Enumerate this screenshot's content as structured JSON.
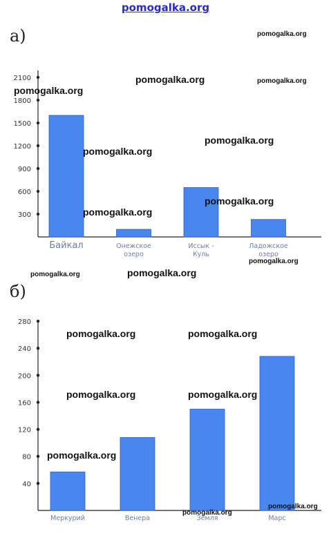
{
  "header": {
    "site": "pomogalka.org"
  },
  "watermark": "pomogalka.org",
  "chart_data": [
    {
      "label": "а)",
      "type": "bar",
      "categories": [
        [
          "Байкал"
        ],
        [
          "Онежское",
          "озеро"
        ],
        [
          "Иссык -",
          "Куль"
        ],
        [
          "Ладожское",
          "озеро"
        ]
      ],
      "values": [
        1600,
        100,
        650,
        230
      ],
      "y_ticks": [
        300,
        600,
        900,
        1200,
        1500,
        1800,
        2100
      ],
      "ylim": [
        0,
        2100
      ],
      "bar_color": "#4a86f0",
      "grid": false
    },
    {
      "label": "б)",
      "type": "bar",
      "categories": [
        [
          "Меркурий"
        ],
        [
          "Венера"
        ],
        [
          "Земля"
        ],
        [
          "Марс"
        ]
      ],
      "values": [
        57,
        108,
        150,
        228
      ],
      "y_ticks": [
        40,
        80,
        120,
        160,
        200,
        240,
        280
      ],
      "ylim": [
        0,
        280
      ],
      "bar_color": "#4a86f0",
      "grid": false
    }
  ]
}
